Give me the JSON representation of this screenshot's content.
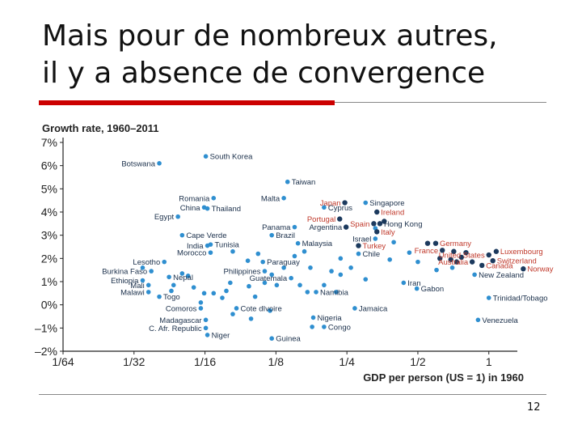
{
  "slide": {
    "title_line1": "Mais pour de nombreux autres,",
    "title_line2": "il y a absence de convergence",
    "slide_number": "12"
  },
  "colors": {
    "dot_blue": "#2f8fd0",
    "dot_dark": "#1c3a5e",
    "label_red": "#c0392b",
    "label_dark": "#1a2f4a",
    "axis": "#222222",
    "accent_red": "#cc0000"
  },
  "chart_data": {
    "type": "scatter",
    "title": "Growth rate, 1960–2011",
    "xlabel": "GDP per person (US = 1) in 1960",
    "ylabel": "Growth rate, 1960–2011",
    "x_scale": "log2",
    "xlim": [
      0.015625,
      1.25
    ],
    "ylim": [
      -2,
      7
    ],
    "x_ticks": [
      {
        "value": 0.015625,
        "label": "1/64"
      },
      {
        "value": 0.03125,
        "label": "1/32"
      },
      {
        "value": 0.0625,
        "label": "1/16"
      },
      {
        "value": 0.125,
        "label": "1/8"
      },
      {
        "value": 0.25,
        "label": "1/4"
      },
      {
        "value": 0.5,
        "label": "1/2"
      },
      {
        "value": 1,
        "label": "1"
      }
    ],
    "y_ticks": [
      {
        "value": 7,
        "label": "7%"
      },
      {
        "value": 6,
        "label": "6%"
      },
      {
        "value": 5,
        "label": "5%"
      },
      {
        "value": 4,
        "label": "4%"
      },
      {
        "value": 3,
        "label": "3%"
      },
      {
        "value": 2,
        "label": "2%"
      },
      {
        "value": 1,
        "label": "1%"
      },
      {
        "value": 0,
        "label": "0%"
      },
      {
        "value": -1,
        "label": "–1%"
      },
      {
        "value": -2,
        "label": "–2%"
      }
    ],
    "labeled_points": [
      {
        "name": "South Korea",
        "x": 0.063,
        "y": 6.4,
        "style": "blue",
        "label_pos": "right"
      },
      {
        "name": "Botswana",
        "x": 0.04,
        "y": 6.1,
        "style": "blue",
        "label_pos": "left"
      },
      {
        "name": "Taiwan",
        "x": 0.14,
        "y": 5.3,
        "style": "blue",
        "label_pos": "right"
      },
      {
        "name": "Malta",
        "x": 0.135,
        "y": 4.6,
        "style": "blue",
        "label_pos": "left"
      },
      {
        "name": "Romania",
        "x": 0.068,
        "y": 4.6,
        "style": "blue",
        "label_pos": "left"
      },
      {
        "name": "Japan",
        "x": 0.245,
        "y": 4.4,
        "style": "dark",
        "label_pos": "left",
        "label_color": "red"
      },
      {
        "name": "Singapore",
        "x": 0.3,
        "y": 4.4,
        "style": "blue",
        "label_pos": "right"
      },
      {
        "name": "China",
        "x": 0.062,
        "y": 4.2,
        "style": "blue",
        "label_pos": "left"
      },
      {
        "name": "Thailand",
        "x": 0.064,
        "y": 4.15,
        "style": "blue",
        "label_pos": "right"
      },
      {
        "name": "Cyprus",
        "x": 0.2,
        "y": 4.2,
        "style": "blue",
        "label_pos": "right"
      },
      {
        "name": "Ireland",
        "x": 0.335,
        "y": 4.0,
        "style": "dark",
        "label_pos": "right",
        "label_color": "red"
      },
      {
        "name": "Egypt",
        "x": 0.048,
        "y": 3.8,
        "style": "blue",
        "label_pos": "left"
      },
      {
        "name": "Portugal",
        "x": 0.233,
        "y": 3.7,
        "style": "dark",
        "label_pos": "left",
        "label_color": "red"
      },
      {
        "name": "Spain",
        "x": 0.325,
        "y": 3.5,
        "style": "dark",
        "label_pos": "left",
        "label_color": "red"
      },
      {
        "name": "Hong Kong",
        "x": 0.345,
        "y": 3.5,
        "style": "dark",
        "label_pos": "right"
      },
      {
        "name": "Panama",
        "x": 0.15,
        "y": 3.35,
        "style": "blue",
        "label_pos": "left"
      },
      {
        "name": "Argentina",
        "x": 0.248,
        "y": 3.35,
        "style": "dark",
        "label_pos": "left"
      },
      {
        "name": "Italy",
        "x": 0.335,
        "y": 3.15,
        "style": "dark",
        "label_pos": "right",
        "label_color": "red"
      },
      {
        "name": "Cape Verde",
        "x": 0.05,
        "y": 3.0,
        "style": "blue",
        "label_pos": "right"
      },
      {
        "name": "Brazil",
        "x": 0.12,
        "y": 3.0,
        "style": "blue",
        "label_pos": "right"
      },
      {
        "name": "Israel",
        "x": 0.33,
        "y": 2.85,
        "style": "blue",
        "label_pos": "left"
      },
      {
        "name": "Germany",
        "x": 0.595,
        "y": 2.65,
        "style": "dark",
        "label_pos": "right",
        "label_color": "red"
      },
      {
        "name": "Malaysia",
        "x": 0.155,
        "y": 2.65,
        "style": "blue",
        "label_pos": "right"
      },
      {
        "name": "Turkey",
        "x": 0.28,
        "y": 2.55,
        "style": "dark",
        "label_pos": "right",
        "label_color": "red"
      },
      {
        "name": "India",
        "x": 0.064,
        "y": 2.55,
        "style": "blue",
        "label_pos": "left"
      },
      {
        "name": "Tunisia",
        "x": 0.066,
        "y": 2.6,
        "style": "blue",
        "label_pos": "right"
      },
      {
        "name": "France",
        "x": 0.635,
        "y": 2.35,
        "style": "dark",
        "label_pos": "left",
        "label_color": "red"
      },
      {
        "name": "Luxembourg",
        "x": 1.075,
        "y": 2.3,
        "style": "dark",
        "label_pos": "right",
        "label_color": "red"
      },
      {
        "name": "United States",
        "x": 1.0,
        "y": 2.15,
        "style": "dark",
        "label_pos": "left",
        "label_color": "red"
      },
      {
        "name": "Morocco",
        "x": 0.066,
        "y": 2.25,
        "style": "blue",
        "label_pos": "left"
      },
      {
        "name": "Chile",
        "x": 0.28,
        "y": 2.2,
        "style": "blue",
        "label_pos": "right"
      },
      {
        "name": "Switzerland",
        "x": 1.04,
        "y": 1.9,
        "style": "dark",
        "label_pos": "right",
        "label_color": "red"
      },
      {
        "name": "Lesotho",
        "x": 0.042,
        "y": 1.85,
        "style": "blue",
        "label_pos": "left"
      },
      {
        "name": "Paraguay",
        "x": 0.11,
        "y": 1.85,
        "style": "blue",
        "label_pos": "right"
      },
      {
        "name": "Australia",
        "x": 0.85,
        "y": 1.85,
        "style": "dark",
        "label_pos": "left",
        "label_color": "red"
      },
      {
        "name": "Canada",
        "x": 0.935,
        "y": 1.7,
        "style": "dark",
        "label_pos": "right",
        "label_color": "red"
      },
      {
        "name": "Norway",
        "x": 1.4,
        "y": 1.55,
        "style": "dark",
        "label_pos": "right",
        "label_color": "red"
      },
      {
        "name": "Burkina Faso",
        "x": 0.037,
        "y": 1.45,
        "style": "blue",
        "label_pos": "left"
      },
      {
        "name": "Philippines",
        "x": 0.112,
        "y": 1.45,
        "style": "blue",
        "label_pos": "left"
      },
      {
        "name": "New Zealand",
        "x": 0.87,
        "y": 1.3,
        "style": "blue",
        "label_pos": "right"
      },
      {
        "name": "Nepal",
        "x": 0.044,
        "y": 1.2,
        "style": "blue",
        "label_pos": "right"
      },
      {
        "name": "Guatemala",
        "x": 0.145,
        "y": 1.15,
        "style": "blue",
        "label_pos": "left"
      },
      {
        "name": "Ethiopia",
        "x": 0.034,
        "y": 1.05,
        "style": "blue",
        "label_pos": "left"
      },
      {
        "name": "Iran",
        "x": 0.435,
        "y": 0.95,
        "style": "blue",
        "label_pos": "right"
      },
      {
        "name": "Mali",
        "x": 0.036,
        "y": 0.85,
        "style": "blue",
        "label_pos": "left"
      },
      {
        "name": "Gabon",
        "x": 0.495,
        "y": 0.7,
        "style": "blue",
        "label_pos": "right"
      },
      {
        "name": "Malawi",
        "x": 0.036,
        "y": 0.55,
        "style": "blue",
        "label_pos": "left"
      },
      {
        "name": "Namibia",
        "x": 0.185,
        "y": 0.55,
        "style": "blue",
        "label_pos": "right"
      },
      {
        "name": "Togo",
        "x": 0.04,
        "y": 0.35,
        "style": "blue",
        "label_pos": "right"
      },
      {
        "name": "Trinidad/Tobago",
        "x": 1.0,
        "y": 0.3,
        "style": "blue",
        "label_pos": "right"
      },
      {
        "name": "Comoros",
        "x": 0.06,
        "y": -0.15,
        "style": "blue",
        "label_pos": "left"
      },
      {
        "name": "Cote dIvoire",
        "x": 0.085,
        "y": -0.15,
        "style": "blue",
        "label_pos": "right"
      },
      {
        "name": "Jamaica",
        "x": 0.27,
        "y": -0.15,
        "style": "blue",
        "label_pos": "right"
      },
      {
        "name": "Nigeria",
        "x": 0.18,
        "y": -0.55,
        "style": "blue",
        "label_pos": "right"
      },
      {
        "name": "Venezuela",
        "x": 0.9,
        "y": -0.65,
        "style": "blue",
        "label_pos": "right"
      },
      {
        "name": "Madagascar",
        "x": 0.063,
        "y": -0.65,
        "style": "blue",
        "label_pos": "left"
      },
      {
        "name": "Congo",
        "x": 0.2,
        "y": -0.95,
        "style": "blue",
        "label_pos": "right"
      },
      {
        "name": "C. Afr. Republic",
        "x": 0.063,
        "y": -1.0,
        "style": "blue",
        "label_pos": "left"
      },
      {
        "name": "Niger",
        "x": 0.064,
        "y": -1.3,
        "style": "blue",
        "label_pos": "right"
      },
      {
        "name": "Guinea",
        "x": 0.12,
        "y": -1.45,
        "style": "blue",
        "label_pos": "right"
      }
    ],
    "unlabeled_points": [
      {
        "x": 0.034,
        "y": 1.6,
        "style": "blue"
      },
      {
        "x": 0.05,
        "y": 1.35,
        "style": "blue"
      },
      {
        "x": 0.053,
        "y": 1.25,
        "style": "blue"
      },
      {
        "x": 0.046,
        "y": 0.85,
        "style": "blue"
      },
      {
        "x": 0.056,
        "y": 0.75,
        "style": "blue"
      },
      {
        "x": 0.045,
        "y": 0.6,
        "style": "blue"
      },
      {
        "x": 0.062,
        "y": 0.5,
        "style": "blue"
      },
      {
        "x": 0.068,
        "y": 0.5,
        "style": "blue"
      },
      {
        "x": 0.077,
        "y": 0.6,
        "style": "blue"
      },
      {
        "x": 0.074,
        "y": 0.3,
        "style": "blue"
      },
      {
        "x": 0.08,
        "y": 0.95,
        "style": "blue"
      },
      {
        "x": 0.096,
        "y": 0.8,
        "style": "blue"
      },
      {
        "x": 0.112,
        "y": 0.95,
        "style": "blue"
      },
      {
        "x": 0.126,
        "y": 0.85,
        "style": "blue"
      },
      {
        "x": 0.102,
        "y": 0.35,
        "style": "blue"
      },
      {
        "x": 0.082,
        "y": 2.3,
        "style": "blue"
      },
      {
        "x": 0.095,
        "y": 1.9,
        "style": "blue"
      },
      {
        "x": 0.105,
        "y": 2.2,
        "style": "blue"
      },
      {
        "x": 0.12,
        "y": 1.3,
        "style": "blue"
      },
      {
        "x": 0.135,
        "y": 1.6,
        "style": "blue"
      },
      {
        "x": 0.15,
        "y": 2.1,
        "style": "blue"
      },
      {
        "x": 0.165,
        "y": 2.3,
        "style": "blue"
      },
      {
        "x": 0.175,
        "y": 1.6,
        "style": "blue"
      },
      {
        "x": 0.158,
        "y": 0.85,
        "style": "blue"
      },
      {
        "x": 0.17,
        "y": 0.55,
        "style": "blue"
      },
      {
        "x": 0.2,
        "y": 0.85,
        "style": "blue"
      },
      {
        "x": 0.235,
        "y": 1.3,
        "style": "blue"
      },
      {
        "x": 0.235,
        "y": 2.0,
        "style": "blue"
      },
      {
        "x": 0.215,
        "y": 1.45,
        "style": "blue"
      },
      {
        "x": 0.26,
        "y": 1.6,
        "style": "blue"
      },
      {
        "x": 0.3,
        "y": 1.1,
        "style": "blue"
      },
      {
        "x": 0.225,
        "y": 0.55,
        "style": "blue"
      },
      {
        "x": 0.082,
        "y": -0.4,
        "style": "blue"
      },
      {
        "x": 0.098,
        "y": -0.6,
        "style": "blue"
      },
      {
        "x": 0.06,
        "y": 0.1,
        "style": "blue"
      },
      {
        "x": 0.118,
        "y": -0.25,
        "style": "blue"
      },
      {
        "x": 0.178,
        "y": -0.95,
        "style": "blue"
      },
      {
        "x": 0.38,
        "y": 1.95,
        "style": "blue"
      },
      {
        "x": 0.395,
        "y": 2.7,
        "style": "blue"
      },
      {
        "x": 0.46,
        "y": 2.25,
        "style": "blue"
      },
      {
        "x": 0.33,
        "y": 3.3,
        "style": "blue"
      },
      {
        "x": 0.55,
        "y": 2.65,
        "style": "dark"
      },
      {
        "x": 0.62,
        "y": 2.0,
        "style": "dark"
      },
      {
        "x": 0.69,
        "y": 1.95,
        "style": "dark"
      },
      {
        "x": 0.73,
        "y": 1.85,
        "style": "dark"
      },
      {
        "x": 0.765,
        "y": 2.05,
        "style": "dark"
      },
      {
        "x": 0.71,
        "y": 2.3,
        "style": "dark"
      },
      {
        "x": 0.8,
        "y": 2.25,
        "style": "dark"
      },
      {
        "x": 0.6,
        "y": 1.5,
        "style": "blue"
      },
      {
        "x": 0.7,
        "y": 1.6,
        "style": "blue"
      },
      {
        "x": 0.5,
        "y": 1.85,
        "style": "blue"
      },
      {
        "x": 0.36,
        "y": 3.6,
        "style": "dark"
      }
    ]
  }
}
